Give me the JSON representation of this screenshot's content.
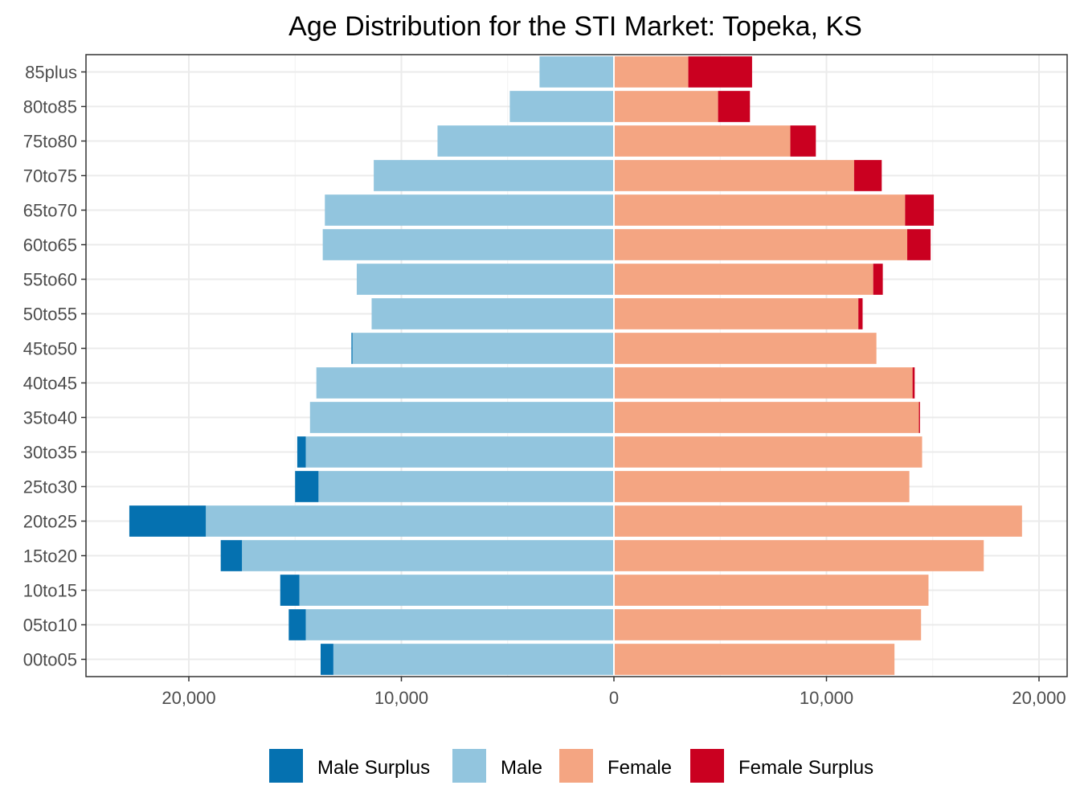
{
  "chart_data": {
    "type": "bar",
    "orientation": "horizontal-diverging",
    "title": "Age Distribution for the STI Market: Topeka, KS",
    "xlim": [
      -25000,
      25000
    ],
    "x_ticks": [
      -20000,
      -10000,
      0,
      10000,
      20000
    ],
    "x_tick_labels": [
      "20,000",
      "10,000",
      "0",
      "10,000",
      "20,000"
    ],
    "grid": true,
    "legend_position": "bottom",
    "categories": [
      "85plus",
      "80to85",
      "75to80",
      "70to75",
      "65to70",
      "60to65",
      "55to60",
      "50to55",
      "45to50",
      "40to45",
      "35to40",
      "30to35",
      "25to30",
      "20to25",
      "15to20",
      "10to15",
      "05to10",
      "00to05"
    ],
    "series": [
      {
        "name": "Male Surplus",
        "color": "#0571b0",
        "side": "left",
        "values": [
          0,
          0,
          0,
          0,
          0,
          0,
          0,
          0,
          50,
          0,
          0,
          400,
          1100,
          3600,
          1000,
          900,
          800,
          600
        ]
      },
      {
        "name": "Male",
        "color": "#92c5de",
        "side": "left",
        "values": [
          3500,
          4900,
          8300,
          11300,
          13600,
          13700,
          12100,
          11400,
          12300,
          14000,
          14300,
          14500,
          13900,
          19200,
          17500,
          14800,
          14500,
          13200
        ]
      },
      {
        "name": "Female",
        "color": "#f4a582",
        "side": "right",
        "values": [
          3500,
          4900,
          8300,
          11300,
          13700,
          13800,
          12200,
          11500,
          12350,
          14050,
          14350,
          14500,
          13900,
          19200,
          17400,
          14800,
          14450,
          13200
        ]
      },
      {
        "name": "Female Surplus",
        "color": "#ca0020",
        "side": "right",
        "values": [
          3000,
          1500,
          1200,
          1300,
          1350,
          1100,
          450,
          200,
          0,
          100,
          50,
          0,
          0,
          0,
          0,
          0,
          0,
          0
        ]
      }
    ]
  }
}
